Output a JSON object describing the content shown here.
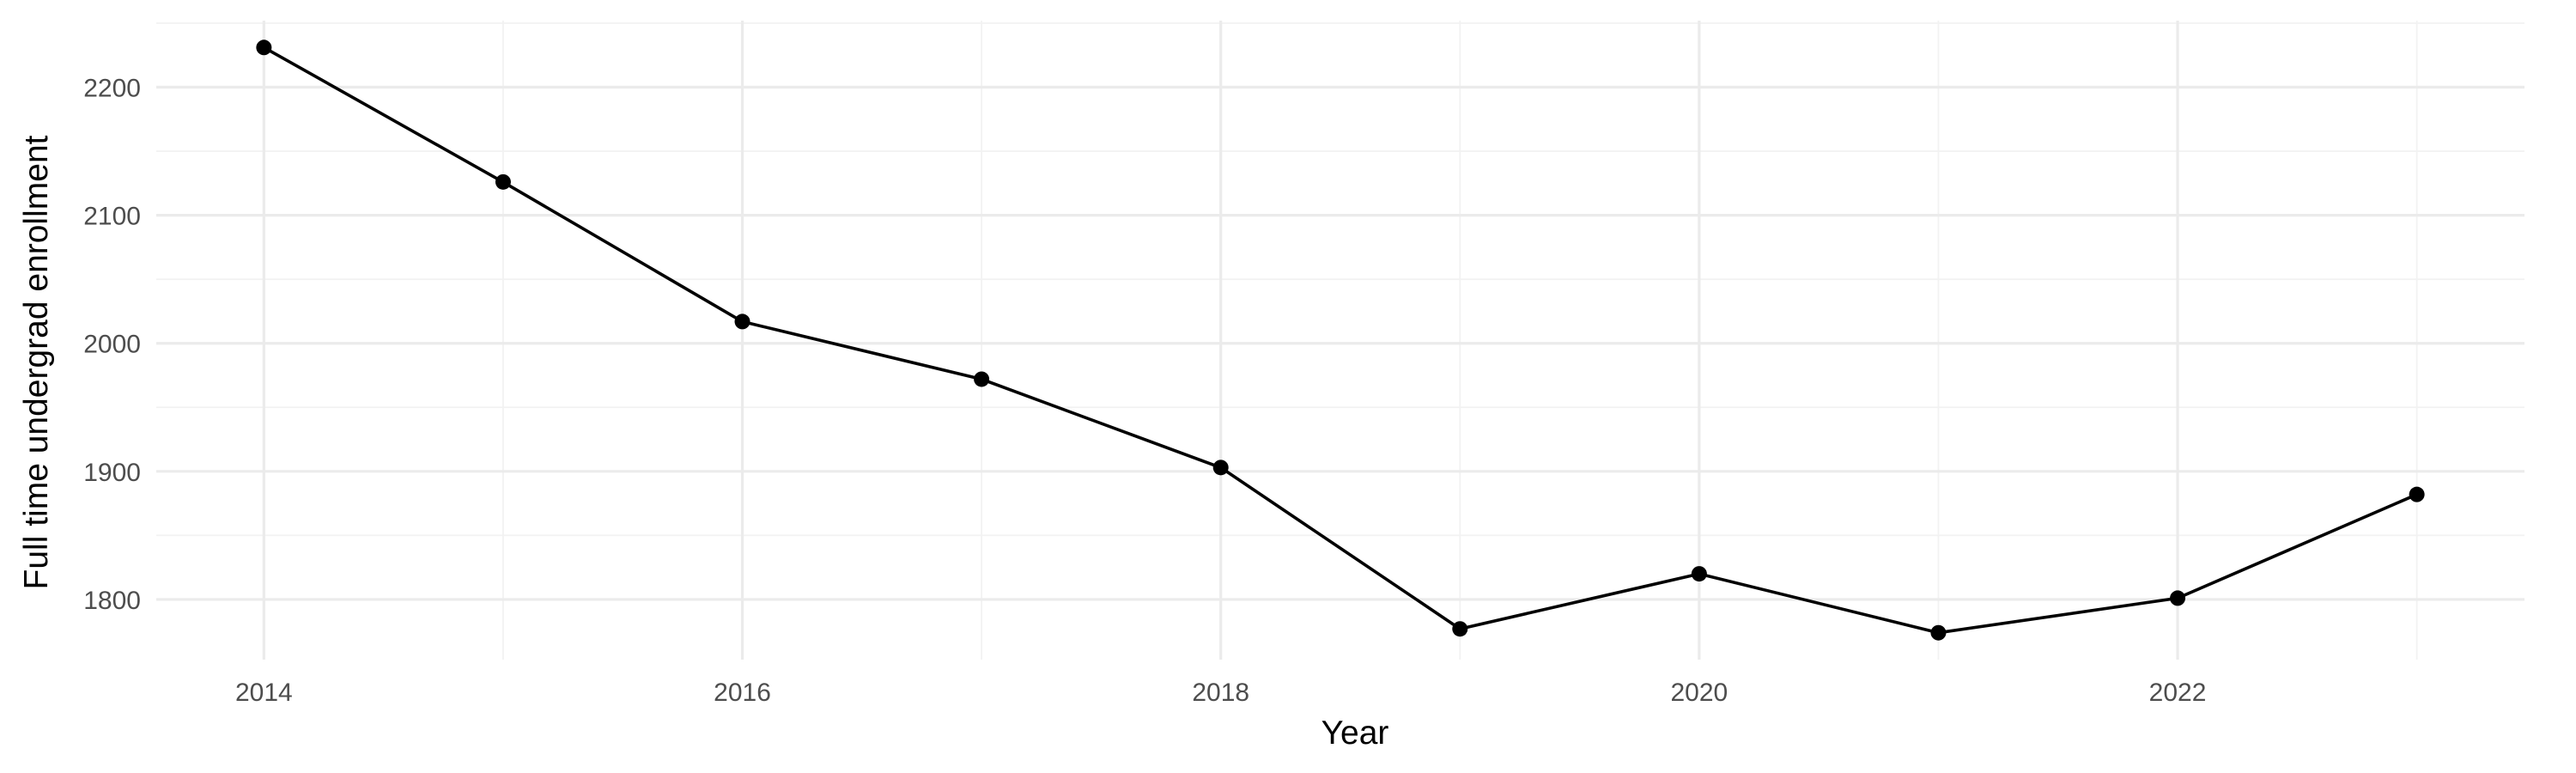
{
  "chart_data": {
    "type": "line",
    "title": "",
    "xlabel": "Year",
    "ylabel": "Full time undergrad enrollment",
    "x": [
      2014,
      2015,
      2016,
      2017,
      2018,
      2019,
      2020,
      2021,
      2022,
      2023
    ],
    "series": [
      {
        "values": [
          2231,
          2126,
          2017,
          1972,
          1903,
          1777,
          1820,
          1774,
          1801,
          1882
        ]
      }
    ],
    "xlim": [
      2013.55,
      2023.45
    ],
    "ylim": [
      1753,
      2252
    ],
    "xticks": [
      2014,
      2016,
      2018,
      2020,
      2022
    ],
    "xtick_labels": [
      "2014",
      "2016",
      "2018",
      "2020",
      "2022"
    ],
    "yticks": [
      1800,
      1900,
      2000,
      2100,
      2200
    ],
    "ytick_labels": [
      "1800",
      "1900",
      "2000",
      "2100",
      "2200"
    ],
    "x_minor_ticks": [
      2015,
      2017,
      2019,
      2021,
      2023
    ],
    "y_minor_ticks": [
      1850,
      1950,
      2050,
      2150,
      2250
    ],
    "grid": true,
    "legend": "none",
    "colors": {
      "line": "#000000",
      "point": "#000000",
      "grid_major": "#ebebeb",
      "grid_minor": "#f2f2f2",
      "background": "#ffffff"
    }
  }
}
